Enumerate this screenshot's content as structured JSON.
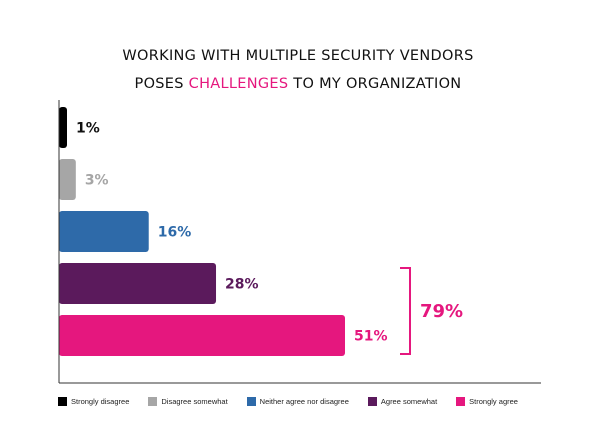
{
  "chart_data": {
    "type": "bar",
    "orientation": "horizontal",
    "title_line1": "WORKING WITH MULTIPLE SECURITY VENDORS",
    "title_line2_before": "POSES ",
    "title_line2_highlight": "CHALLENGES",
    "title_line2_after": " TO MY ORGANIZATION",
    "categories": [
      "Strongly disagree",
      "Disagree somewhat",
      "Neither agree nor disagree",
      "Agree somewhat",
      "Strongly agree"
    ],
    "values": [
      1,
      3,
      16,
      28,
      51
    ],
    "value_labels": [
      "1%",
      "3%",
      "16%",
      "28%",
      "51%"
    ],
    "colors": [
      "#000000",
      "#a6a6a6",
      "#2e6aa9",
      "#5b1a5c",
      "#e5177e"
    ],
    "value_label_colors": [
      "#111111",
      "#a6a6a6",
      "#2e6aa9",
      "#5b1a5c",
      "#e5177e"
    ],
    "xlim": [
      0,
      51
    ],
    "bracket": {
      "label": "79%",
      "covers": [
        "Agree somewhat",
        "Strongly agree"
      ],
      "color": "#e5177e"
    },
    "highlight_color": "#e5177e",
    "legend_placement": "bottom"
  }
}
